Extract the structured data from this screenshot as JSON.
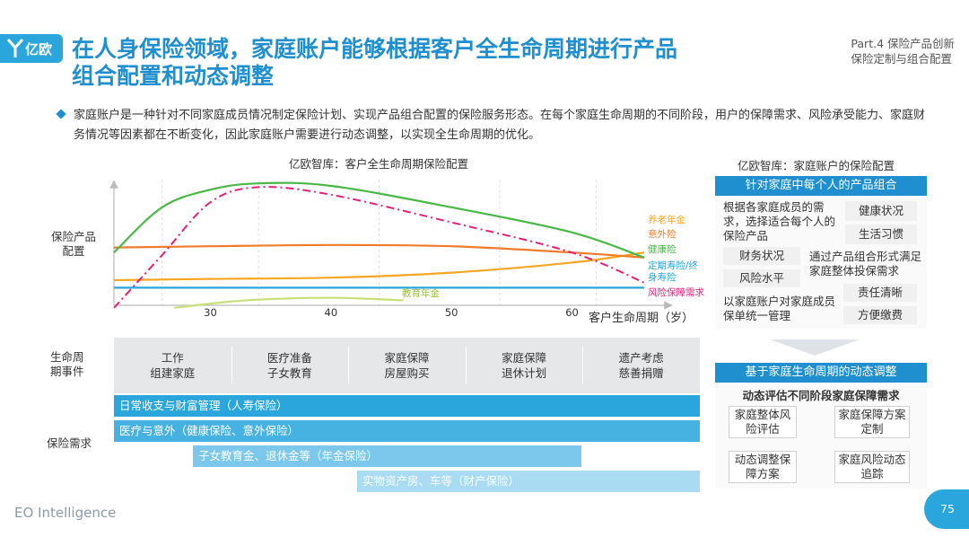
{
  "header": {
    "logo_text": "亿欧",
    "title_line1": "在人身保险领域，家庭账户能够根据客户全生命周期进行产品",
    "title_line2": "组合配置和动态调整",
    "part_line1": "Part.4 保险产品创新",
    "part_line2": "保险定制与组合配置"
  },
  "description": "家庭账户是一种针对不同家庭成员情况制定保险计划、实现产品组合配置的保险服务形态。在每个家庭生命周期的不同阶段，用户的保障需求、风险承受能力、家庭财务情况等因素都在不断变化，因此家庭账户需要进行动态调整，以实现全生命周期的优化。",
  "chart_data": {
    "type": "line",
    "title": "亿欧智库：客户全生命周期保险配置",
    "ylabel": "保险产品配置",
    "xlabel": "客户生命周期（岁）",
    "xlim": [
      22,
      68
    ],
    "ylim": [
      0,
      100
    ],
    "xticks": [
      30,
      40,
      50,
      60
    ],
    "series": [
      {
        "name": "养老年金",
        "color": "#f5a623",
        "x": [
          22,
          30,
          40,
          50,
          60,
          66
        ],
        "y": [
          20,
          21,
          22,
          26,
          34,
          42
        ]
      },
      {
        "name": "意外险",
        "color": "#f07b2a",
        "x": [
          22,
          30,
          40,
          50,
          60,
          66
        ],
        "y": [
          46,
          47,
          48,
          47,
          42,
          38
        ]
      },
      {
        "name": "健康险",
        "color": "#49b848",
        "x": [
          22,
          26,
          30,
          34,
          40,
          50,
          60,
          66
        ],
        "y": [
          42,
          78,
          92,
          97,
          95,
          78,
          58,
          38
        ]
      },
      {
        "name": "定期寿险/终身寿险",
        "color": "#2aa6dc",
        "x": [
          22,
          30,
          40,
          50,
          60,
          66
        ],
        "y": [
          14,
          14,
          14,
          14,
          14,
          14
        ]
      },
      {
        "name": "风险保障需求",
        "color": "#e2207a",
        "dashed": true,
        "x": [
          22,
          26,
          30,
          34,
          40,
          50,
          60,
          66
        ],
        "y": [
          -2,
          40,
          82,
          94,
          88,
          66,
          42,
          18
        ]
      },
      {
        "name": "教育年金",
        "color": "#c9e07a",
        "x": [
          27,
          33,
          40,
          46
        ],
        "y": [
          -2,
          4,
          6,
          4
        ]
      }
    ],
    "life_events_label": "生命周期事件",
    "life_events": [
      {
        "line1": "工作",
        "line2": "组建家庭"
      },
      {
        "line1": "医疗准备",
        "line2": "子女教育"
      },
      {
        "line1": "家庭保障",
        "line2": "房屋购买"
      },
      {
        "line1": "家庭保障",
        "line2": "退休计划"
      },
      {
        "line1": "遗产考虑",
        "line2": "慈善捐赠"
      }
    ],
    "needs_label": "保险需求",
    "needs": [
      {
        "text": "日常收支与财富管理（人寿保险）",
        "color": "#2aa6dc"
      },
      {
        "text": "医疗与意外（健康保险、意外保险）",
        "color": "#46b2e2"
      },
      {
        "text": "子女教育金、退休金等（年金保险）",
        "color": "#7cc8ec"
      },
      {
        "text": "实物资产房、车等（财产保险）",
        "color": "#a9dbf3"
      }
    ]
  },
  "right_panel": {
    "title": "亿欧智库：家庭账户的保险配置",
    "section1_header": "针对家庭中每个人的产品组合",
    "text_a": "根据各家庭成员的需求，选择适合每个人的保险产品",
    "tag_health": "健康状况",
    "tag_habit": "生活习惯",
    "tag_finance": "财务状况",
    "tag_risk": "风险水平",
    "text_b": "通过产品组合形式满足家庭整体投保需求",
    "tag_resp": "责任清晰",
    "text_c": "以家庭账户对家庭成员保单统一管理",
    "tag_pay": "方便缴费",
    "section2_header": "基于家庭生命周期的动态调整",
    "section2_sub": "动态评估不同阶段家庭保障需求",
    "flow_1": "家庭整体风险评估",
    "flow_2": "家庭保障方案定制",
    "flow_3": "家庭风险动态追踪",
    "flow_4": "动态调整保障方案"
  },
  "footer": {
    "brand": "EO Intelligence",
    "page": "75"
  }
}
